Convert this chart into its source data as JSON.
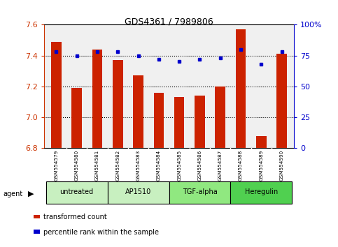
{
  "title": "GDS4361 / 7989806",
  "samples": [
    "GSM554579",
    "GSM554580",
    "GSM554581",
    "GSM554582",
    "GSM554583",
    "GSM554584",
    "GSM554585",
    "GSM554586",
    "GSM554587",
    "GSM554588",
    "GSM554589",
    "GSM554590"
  ],
  "red_values": [
    7.49,
    7.19,
    7.44,
    7.37,
    7.27,
    7.16,
    7.13,
    7.14,
    7.2,
    7.57,
    6.88,
    7.41
  ],
  "blue_values": [
    78,
    75,
    78,
    78,
    75,
    72,
    70,
    72,
    73,
    80,
    68,
    78
  ],
  "ylim_left": [
    6.8,
    7.6
  ],
  "ylim_right": [
    0,
    100
  ],
  "yticks_left": [
    6.8,
    7.0,
    7.2,
    7.4,
    7.6
  ],
  "yticks_right": [
    0,
    25,
    50,
    75,
    100
  ],
  "ytick_labels_right": [
    "0",
    "25",
    "50",
    "75",
    "100%"
  ],
  "groups": [
    {
      "label": "untreated",
      "start": 0,
      "end": 2,
      "color": "#c8f0c0"
    },
    {
      "label": "AP1510",
      "start": 3,
      "end": 5,
      "color": "#c8f0c0"
    },
    {
      "label": "TGF-alpha",
      "start": 6,
      "end": 8,
      "color": "#90e880"
    },
    {
      "label": "Heregulin",
      "start": 9,
      "end": 11,
      "color": "#50d050"
    }
  ],
  "red_color": "#cc2200",
  "blue_color": "#0000cc",
  "bar_width": 0.5,
  "bg_plot": "#f0f0f0",
  "bg_xtick": "#d0d0d0"
}
